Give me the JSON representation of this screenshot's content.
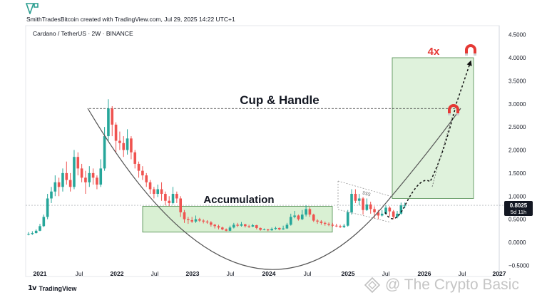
{
  "header": {
    "credit": "SmithTradesBitcoin created with TradingView.com, Jul 29, 2025 14:22 UTC+1",
    "symbol": "Cardano / TetherUS · 2W · BINANCE"
  },
  "footer": {
    "brand": "TradingView"
  },
  "watermark": {
    "text": "@ The Crypto Basic"
  },
  "colors": {
    "up": "#26a69a",
    "down": "#ef5350",
    "zone_fill": "#d9f0d3",
    "zone_stroke": "#4a8a4a",
    "target_fill": "#dff2dc",
    "curve": "#555555",
    "magnet": "#e53935",
    "label_bg": "#131722"
  },
  "chart_data": {
    "type": "candlestick",
    "symbol": "Cardano / TetherUS",
    "interval": "2W",
    "exchange": "BINANCE",
    "ylim": [
      -0.5,
      4.6
    ],
    "y_ticks": [
      "4.5000",
      "4.0000",
      "3.5000",
      "3.0000",
      "2.5000",
      "2.0000",
      "1.5000",
      "1.0000",
      "0.5000",
      "0.0000",
      "−0.5000"
    ],
    "x_ticks": [
      "2021",
      "Jul",
      "2022",
      "Jul",
      "2023",
      "Jul",
      "2024",
      "Jul",
      "2025",
      "Jul",
      "2026",
      "Jul",
      "2027"
    ],
    "last_price": "0.8025",
    "countdown": "5d 11h",
    "annotations": {
      "pattern_label": "Cup & Handle",
      "zone_label": "Accumulation",
      "multiplier_label": "4x",
      "handle_label": "$$$"
    },
    "levels": {
      "ath": 2.9,
      "target": 4.0,
      "last": 0.8025
    },
    "candles": [
      [
        0.18,
        0.18,
        0.22,
        0.15
      ],
      [
        0.18,
        0.2,
        0.24,
        0.16
      ],
      [
        0.2,
        0.25,
        0.28,
        0.19
      ],
      [
        0.25,
        0.35,
        0.4,
        0.24
      ],
      [
        0.35,
        0.55,
        0.6,
        0.33
      ],
      [
        0.55,
        0.95,
        1.05,
        0.5
      ],
      [
        0.95,
        1.1,
        1.2,
        0.85
      ],
      [
        1.1,
        1.3,
        1.45,
        1.0
      ],
      [
        1.3,
        1.2,
        1.4,
        1.0
      ],
      [
        1.2,
        1.5,
        1.6,
        1.1
      ],
      [
        1.5,
        1.35,
        1.75,
        1.25
      ],
      [
        1.35,
        1.2,
        1.5,
        1.1
      ],
      [
        1.2,
        1.85,
        2.0,
        1.15
      ],
      [
        1.85,
        1.6,
        1.95,
        1.45
      ],
      [
        1.6,
        1.4,
        1.7,
        1.3
      ],
      [
        1.4,
        1.3,
        1.55,
        1.05
      ],
      [
        1.3,
        1.5,
        1.65,
        1.2
      ],
      [
        1.5,
        1.4,
        1.6,
        1.25
      ],
      [
        1.4,
        1.25,
        1.45,
        1.15
      ],
      [
        1.25,
        1.6,
        1.8,
        1.2
      ],
      [
        1.6,
        2.3,
        2.5,
        1.55
      ],
      [
        2.3,
        2.9,
        3.1,
        2.2
      ],
      [
        2.9,
        2.55,
        2.95,
        2.3
      ],
      [
        2.55,
        2.2,
        2.6,
        1.95
      ],
      [
        2.2,
        2.15,
        2.4,
        2.0
      ],
      [
        2.15,
        2.0,
        2.3,
        1.85
      ],
      [
        2.0,
        2.25,
        2.45,
        1.9
      ],
      [
        2.25,
        1.95,
        2.3,
        1.8
      ],
      [
        1.95,
        1.7,
        2.0,
        1.6
      ],
      [
        1.7,
        1.55,
        1.75,
        1.4
      ],
      [
        1.55,
        1.45,
        1.65,
        1.35
      ],
      [
        1.45,
        1.3,
        1.5,
        1.2
      ],
      [
        1.3,
        1.15,
        1.35,
        1.05
      ],
      [
        1.15,
        1.05,
        1.2,
        0.95
      ],
      [
        1.05,
        1.15,
        1.25,
        0.98
      ],
      [
        1.15,
        1.05,
        1.3,
        0.9
      ],
      [
        1.05,
        0.9,
        1.1,
        0.8
      ],
      [
        0.9,
        0.85,
        1.0,
        0.78
      ],
      [
        0.85,
        1.05,
        1.2,
        0.82
      ],
      [
        1.05,
        0.95,
        1.1,
        0.85
      ],
      [
        0.95,
        0.65,
        1.0,
        0.55
      ],
      [
        0.65,
        0.5,
        0.7,
        0.42
      ],
      [
        0.5,
        0.48,
        0.55,
        0.4
      ],
      [
        0.48,
        0.45,
        0.55,
        0.42
      ],
      [
        0.45,
        0.5,
        0.58,
        0.42
      ],
      [
        0.5,
        0.47,
        0.53,
        0.44
      ],
      [
        0.47,
        0.45,
        0.5,
        0.41
      ],
      [
        0.45,
        0.43,
        0.48,
        0.4
      ],
      [
        0.43,
        0.38,
        0.46,
        0.34
      ],
      [
        0.38,
        0.35,
        0.4,
        0.3
      ],
      [
        0.35,
        0.32,
        0.38,
        0.28
      ],
      [
        0.32,
        0.28,
        0.34,
        0.26
      ],
      [
        0.28,
        0.25,
        0.3,
        0.24
      ],
      [
        0.25,
        0.32,
        0.36,
        0.24
      ],
      [
        0.32,
        0.38,
        0.42,
        0.3
      ],
      [
        0.38,
        0.36,
        0.42,
        0.33
      ],
      [
        0.36,
        0.39,
        0.44,
        0.34
      ],
      [
        0.39,
        0.35,
        0.4,
        0.32
      ],
      [
        0.35,
        0.34,
        0.38,
        0.31
      ],
      [
        0.34,
        0.37,
        0.4,
        0.33
      ],
      [
        0.37,
        0.31,
        0.38,
        0.28
      ],
      [
        0.31,
        0.27,
        0.32,
        0.25
      ],
      [
        0.27,
        0.28,
        0.3,
        0.26
      ],
      [
        0.28,
        0.26,
        0.29,
        0.24
      ],
      [
        0.26,
        0.29,
        0.32,
        0.25
      ],
      [
        0.29,
        0.31,
        0.34,
        0.27
      ],
      [
        0.31,
        0.28,
        0.32,
        0.26
      ],
      [
        0.28,
        0.3,
        0.36,
        0.27
      ],
      [
        0.3,
        0.38,
        0.42,
        0.29
      ],
      [
        0.38,
        0.55,
        0.62,
        0.36
      ],
      [
        0.55,
        0.58,
        0.68,
        0.52
      ],
      [
        0.58,
        0.5,
        0.6,
        0.47
      ],
      [
        0.5,
        0.6,
        0.7,
        0.48
      ],
      [
        0.6,
        0.72,
        0.8,
        0.56
      ],
      [
        0.72,
        0.6,
        0.76,
        0.55
      ],
      [
        0.6,
        0.47,
        0.62,
        0.44
      ],
      [
        0.47,
        0.45,
        0.5,
        0.4
      ],
      [
        0.45,
        0.42,
        0.48,
        0.38
      ],
      [
        0.42,
        0.4,
        0.45,
        0.36
      ],
      [
        0.4,
        0.38,
        0.43,
        0.35
      ],
      [
        0.38,
        0.36,
        0.42,
        0.33
      ],
      [
        0.36,
        0.35,
        0.4,
        0.33
      ],
      [
        0.35,
        0.33,
        0.38,
        0.31
      ],
      [
        0.33,
        0.36,
        0.4,
        0.31
      ],
      [
        0.36,
        0.65,
        0.7,
        0.34
      ],
      [
        0.65,
        1.05,
        1.15,
        0.6
      ],
      [
        1.05,
        0.9,
        1.15,
        0.85
      ],
      [
        0.9,
        0.95,
        1.05,
        0.8
      ],
      [
        0.95,
        0.7,
        0.98,
        0.6
      ],
      [
        0.7,
        0.82,
        0.95,
        0.68
      ],
      [
        0.82,
        0.72,
        0.88,
        0.62
      ],
      [
        0.72,
        0.65,
        0.78,
        0.52
      ],
      [
        0.65,
        0.58,
        0.7,
        0.5
      ],
      [
        0.58,
        0.62,
        0.7,
        0.56
      ],
      [
        0.62,
        0.75,
        0.8,
        0.6
      ],
      [
        0.75,
        0.67,
        0.78,
        0.56
      ],
      [
        0.67,
        0.55,
        0.7,
        0.5
      ],
      [
        0.55,
        0.62,
        0.68,
        0.52
      ],
      [
        0.62,
        0.8,
        0.86,
        0.6
      ],
      [
        0.8,
        0.8,
        0.86,
        0.74
      ]
    ]
  }
}
